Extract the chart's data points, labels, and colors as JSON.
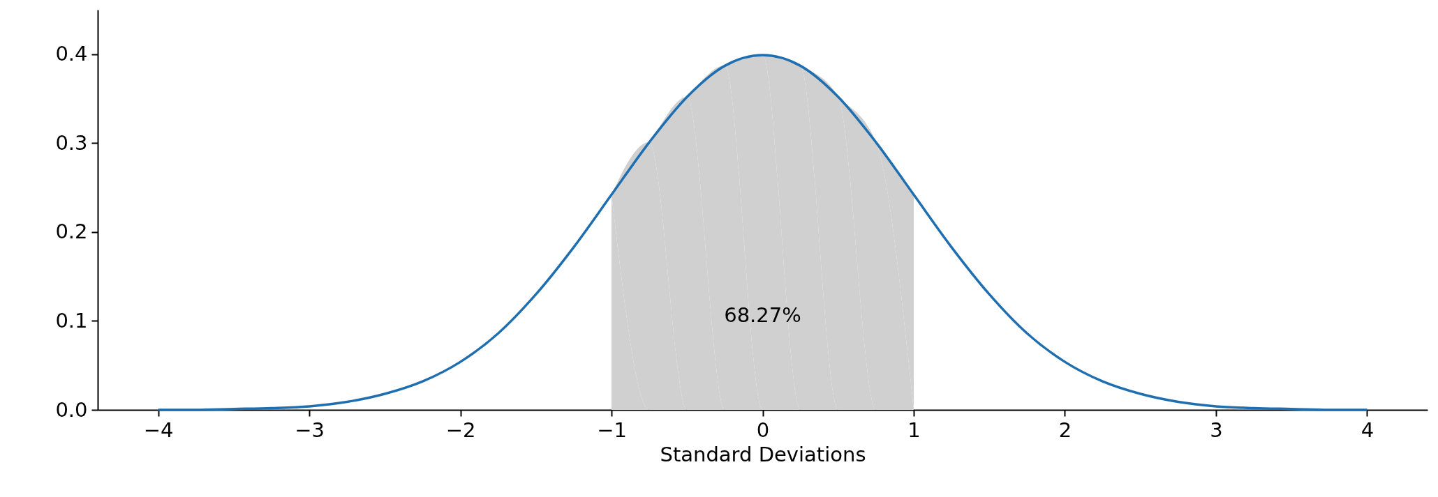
{
  "chart_data": {
    "type": "line",
    "xlabel": "Standard Deviations",
    "xlim": [
      -4.4,
      4.4
    ],
    "ylim": [
      0,
      0.45
    ],
    "xticks": [
      {
        "value": -4,
        "label": "−4"
      },
      {
        "value": -3,
        "label": "−3"
      },
      {
        "value": -2,
        "label": "−2"
      },
      {
        "value": -1,
        "label": "−1"
      },
      0,
      1,
      2,
      3,
      4
    ],
    "yticks": [
      {
        "value": 0,
        "label": "0.0"
      },
      0.1,
      0.2,
      0.3,
      0.4
    ],
    "grid": false,
    "annotations": [
      "68.27%"
    ],
    "series": [
      {
        "type": "area",
        "color": "#d0d0d0",
        "x": [
          -1,
          -0.75,
          -0.5,
          -0.25,
          0,
          0.25,
          0.5,
          0.75,
          1
        ],
        "values": [
          0.242,
          0.301,
          0.352,
          0.387,
          0.399,
          0.387,
          0.352,
          0.301,
          0.242
        ]
      },
      {
        "type": "line",
        "color": "#1f6fb0",
        "x": [
          -4,
          -3.75,
          -3.5,
          -3.25,
          -3,
          -2.75,
          -2.5,
          -2.25,
          -2,
          -1.75,
          -1.5,
          -1.25,
          -1,
          -0.75,
          -0.5,
          -0.25,
          0,
          0.25,
          0.5,
          0.75,
          1,
          1.25,
          1.5,
          1.75,
          2,
          2.25,
          2.5,
          2.75,
          3,
          3.25,
          3.5,
          3.75,
          4
        ],
        "values": [
          0.0,
          0.0,
          0.001,
          0.002,
          0.004,
          0.009,
          0.018,
          0.032,
          0.054,
          0.086,
          0.13,
          0.183,
          0.242,
          0.301,
          0.352,
          0.387,
          0.399,
          0.387,
          0.352,
          0.301,
          0.242,
          0.183,
          0.13,
          0.086,
          0.054,
          0.032,
          0.018,
          0.009,
          0.004,
          0.002,
          0.001,
          0.0,
          0.0
        ]
      }
    ]
  }
}
